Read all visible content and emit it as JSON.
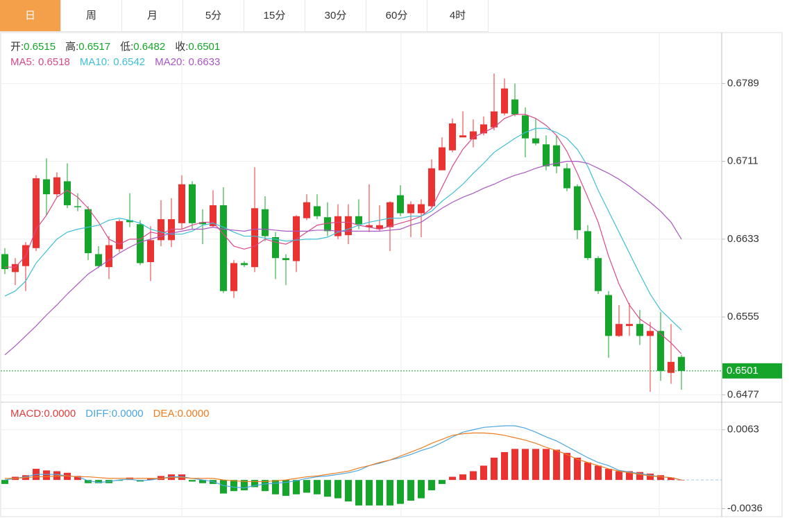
{
  "tabs": [
    "日",
    "周",
    "月",
    "5分",
    "15分",
    "30分",
    "60分",
    "4时"
  ],
  "active_tab": 0,
  "chart_data": [
    {
      "type": "candlestick",
      "ohlc_names": [
        "开:",
        "高:",
        "低:",
        "收:"
      ],
      "up_color": "#ea3331",
      "down_color": "#14a52a",
      "ylim": [
        0.6471,
        0.684
      ],
      "yticks": [
        0.6477,
        0.6555,
        0.6633,
        0.6711,
        0.6789
      ],
      "grid": true,
      "candles": {
        "open": [
          0.6618,
          0.66,
          0.6606,
          0.6624,
          0.6693,
          0.6678,
          0.6691,
          0.6666,
          0.6663,
          0.6618,
          0.6605,
          0.6623,
          0.6652,
          0.6648,
          0.661,
          0.6632,
          0.6632,
          0.6649,
          0.6688,
          0.665,
          0.6646,
          0.6667,
          0.6581,
          0.6609,
          0.6605,
          0.6663,
          0.6635,
          0.6614,
          0.6611,
          0.6654,
          0.6666,
          0.6655,
          0.6636,
          0.6637,
          0.6656,
          0.6645,
          0.6643,
          0.6645,
          0.6677,
          0.6659,
          0.6659,
          0.6666,
          0.6702,
          0.6722,
          0.6735,
          0.6733,
          0.6739,
          0.6745,
          0.6759,
          0.6773,
          0.6757,
          0.6734,
          0.6728,
          0.6727,
          0.6704,
          0.6686,
          0.6641,
          0.6614,
          0.6577,
          0.6536,
          0.6546,
          0.6548,
          0.6536,
          0.6541,
          0.6499,
          0.6515
        ],
        "high": [
          0.6624,
          0.6614,
          0.663,
          0.6697,
          0.6714,
          0.67,
          0.6709,
          0.6679,
          0.6666,
          0.6626,
          0.6636,
          0.6653,
          0.6679,
          0.6652,
          0.6646,
          0.6672,
          0.6674,
          0.6697,
          0.6691,
          0.6663,
          0.6682,
          0.6685,
          0.6612,
          0.6611,
          0.6705,
          0.6676,
          0.664,
          0.6618,
          0.6657,
          0.6678,
          0.6678,
          0.667,
          0.6668,
          0.6668,
          0.6673,
          0.6688,
          0.6667,
          0.6671,
          0.6687,
          0.6671,
          0.6673,
          0.6713,
          0.6735,
          0.6754,
          0.6761,
          0.6753,
          0.6756,
          0.6799,
          0.6794,
          0.6789,
          0.6765,
          0.6754,
          0.6737,
          0.6737,
          0.6709,
          0.6688,
          0.6647,
          0.6616,
          0.6581,
          0.6567,
          0.6569,
          0.6562,
          0.655,
          0.656,
          0.6548,
          0.6517
        ],
        "low": [
          0.6598,
          0.6587,
          0.6581,
          0.6621,
          0.6657,
          0.6675,
          0.6664,
          0.6661,
          0.6612,
          0.6604,
          0.6593,
          0.662,
          0.6645,
          0.6607,
          0.6591,
          0.6626,
          0.6625,
          0.6643,
          0.6643,
          0.6628,
          0.6645,
          0.6579,
          0.6574,
          0.6605,
          0.66,
          0.6631,
          0.6593,
          0.6587,
          0.66,
          0.6652,
          0.6653,
          0.6636,
          0.6633,
          0.6628,
          0.6643,
          0.664,
          0.6641,
          0.6621,
          0.6656,
          0.6635,
          0.6635,
          0.6664,
          0.6702,
          0.672,
          0.6735,
          0.6725,
          0.6737,
          0.6742,
          0.6757,
          0.6756,
          0.6715,
          0.6727,
          0.6702,
          0.6699,
          0.6681,
          0.6633,
          0.6612,
          0.6578,
          0.6514,
          0.6535,
          0.6536,
          0.6527,
          0.648,
          0.6491,
          0.6488,
          0.6482
        ],
        "close": [
          0.6603,
          0.6608,
          0.6627,
          0.6694,
          0.6678,
          0.6695,
          0.6667,
          0.6665,
          0.6619,
          0.6606,
          0.6627,
          0.6651,
          0.665,
          0.6609,
          0.6632,
          0.6653,
          0.6653,
          0.6688,
          0.6649,
          0.6648,
          0.6667,
          0.6581,
          0.6609,
          0.6607,
          0.6664,
          0.6636,
          0.6614,
          0.6612,
          0.6656,
          0.667,
          0.6656,
          0.6641,
          0.6656,
          0.6656,
          0.6648,
          0.6647,
          0.6647,
          0.667,
          0.6659,
          0.6668,
          0.6668,
          0.6704,
          0.6725,
          0.6749,
          0.6737,
          0.6741,
          0.6748,
          0.6761,
          0.6784,
          0.6758,
          0.6734,
          0.6729,
          0.6706,
          0.6706,
          0.6684,
          0.6642,
          0.6614,
          0.6581,
          0.6536,
          0.6548,
          0.6548,
          0.6536,
          0.6541,
          0.6501,
          0.651,
          0.6501
        ]
      },
      "series": [
        {
          "name": "MA5:",
          "color": "#d9488a",
          "values": [
            0.6605,
            0.6605,
            0.6616,
            0.6643,
            0.6657,
            0.6675,
            0.6682,
            0.6675,
            0.6664,
            0.665,
            0.6633,
            0.6628,
            0.6633,
            0.6633,
            0.664,
            0.6638,
            0.6643,
            0.6643,
            0.6647,
            0.665,
            0.665,
            0.6638,
            0.6626,
            0.6623,
            0.6626,
            0.6633,
            0.663,
            0.6628,
            0.6633,
            0.664,
            0.6647,
            0.6649,
            0.665,
            0.665,
            0.6647,
            0.6645,
            0.6643,
            0.6646,
            0.6649,
            0.6652,
            0.6656,
            0.6664,
            0.6685,
            0.6706,
            0.6723,
            0.6735,
            0.674,
            0.6745,
            0.6754,
            0.6758,
            0.6758,
            0.6754,
            0.6747,
            0.6737,
            0.6721,
            0.6699,
            0.6675,
            0.665,
            0.6616,
            0.6588,
            0.6567,
            0.6553,
            0.6546,
            0.6538,
            0.6529,
            0.6518
          ]
        },
        {
          "name": "MA10:",
          "color": "#3dbfd4",
          "values": [
            0.6576,
            0.6581,
            0.6591,
            0.6609,
            0.6621,
            0.6633,
            0.664,
            0.6643,
            0.6645,
            0.6647,
            0.6652,
            0.6654,
            0.6652,
            0.6649,
            0.6643,
            0.664,
            0.6638,
            0.6638,
            0.6641,
            0.6647,
            0.6649,
            0.6645,
            0.664,
            0.6636,
            0.6636,
            0.6634,
            0.6633,
            0.6631,
            0.6632,
            0.6633,
            0.6633,
            0.6635,
            0.664,
            0.6643,
            0.6647,
            0.665,
            0.6652,
            0.6654,
            0.6654,
            0.6656,
            0.6656,
            0.6661,
            0.6671,
            0.6679,
            0.6688,
            0.6699,
            0.6709,
            0.672,
            0.6727,
            0.6734,
            0.674,
            0.6744,
            0.6744,
            0.674,
            0.6734,
            0.6723,
            0.6706,
            0.6682,
            0.6661,
            0.664,
            0.6619,
            0.6598,
            0.6578,
            0.6562,
            0.6552,
            0.6542
          ]
        },
        {
          "name": "MA20:",
          "color": "#a957c0",
          "values": [
            0.6517,
            0.6526,
            0.6536,
            0.6546,
            0.6557,
            0.6567,
            0.6578,
            0.6588,
            0.6598,
            0.6605,
            0.6612,
            0.6619,
            0.6625,
            0.663,
            0.6633,
            0.6636,
            0.6639,
            0.6641,
            0.6643,
            0.6643,
            0.6645,
            0.6643,
            0.6642,
            0.6641,
            0.6643,
            0.6643,
            0.6642,
            0.6641,
            0.6641,
            0.6641,
            0.6642,
            0.6642,
            0.6641,
            0.6641,
            0.6641,
            0.6641,
            0.6641,
            0.6642,
            0.6643,
            0.6647,
            0.665,
            0.6657,
            0.6664,
            0.667,
            0.6675,
            0.6679,
            0.6684,
            0.6688,
            0.6693,
            0.6697,
            0.67,
            0.6704,
            0.6707,
            0.6709,
            0.6711,
            0.6711,
            0.6709,
            0.6704,
            0.6699,
            0.6693,
            0.6686,
            0.6678,
            0.667,
            0.6661,
            0.665,
            0.6633
          ]
        }
      ]
    },
    {
      "type": "macd",
      "ylim": [
        -0.0046,
        0.0095
      ],
      "yticks": [
        -0.0036,
        0.0063
      ],
      "zero": 0,
      "up_color": "#ea3331",
      "down_color": "#14a52a",
      "series": [
        {
          "name": "MACD:",
          "color": "#e33b3b",
          "kind": "bar",
          "value_label": "0.0000",
          "values": [
            -0.0005,
            0.0004,
            0.0006,
            0.0014,
            0.0012,
            0.0011,
            0.0009,
            0.0005,
            -0.0004,
            -0.0004,
            -0.0004,
            -0.0001,
            0.0003,
            -0.0002,
            0.0002,
            0.0005,
            0.0007,
            0.0007,
            -0.0002,
            -0.0004,
            -0.0005,
            -0.0017,
            -0.0014,
            -0.0013,
            -0.0009,
            -0.0014,
            -0.0018,
            -0.002,
            -0.0018,
            -0.0016,
            -0.0018,
            -0.0021,
            -0.0023,
            -0.0027,
            -0.0032,
            -0.0032,
            -0.0032,
            -0.0032,
            -0.003,
            -0.0026,
            -0.0023,
            -0.0013,
            -0.0005,
            0.0004,
            0.0007,
            0.0011,
            0.0018,
            0.0028,
            0.0035,
            0.0039,
            0.0039,
            0.0039,
            0.0039,
            0.0038,
            0.0034,
            0.0028,
            0.0022,
            0.0018,
            0.0014,
            0.0011,
            0.0011,
            0.001,
            0.0008,
            0.0006,
            0.0003,
            0
          ]
        },
        {
          "name": "DIFF:",
          "color": "#4aa6e0",
          "kind": "line",
          "value_label": "0.0000",
          "values": [
            0,
            0.0002,
            0.0004,
            0.0007,
            0.0007,
            0.0007,
            0.0005,
            0.0004,
            -0.0001,
            -0.0003,
            -0.0002,
            0,
            0.0001,
            -0.0001,
            0,
            0.0002,
            0.0004,
            0.0004,
            0.0002,
            0,
            -0.0002,
            -0.0007,
            -0.0009,
            -0.001,
            -0.0007,
            -0.0005,
            -0.0004,
            -0.0003,
            -0.0001,
            0.0002,
            0.0004,
            0.0005,
            0.0007,
            0.0009,
            0.0012,
            0.0018,
            0.0021,
            0.0025,
            0.0028,
            0.0032,
            0.0037,
            0.0041,
            0.0047,
            0.0054,
            0.006,
            0.0063,
            0.0066,
            0.0067,
            0.0068,
            0.0068,
            0.0065,
            0.006,
            0.0054,
            0.0049,
            0.0042,
            0.0035,
            0.0028,
            0.0022,
            0.0018,
            0.0012,
            0.001,
            0.0008,
            0.0006,
            0.0004,
            0.0003,
            0
          ]
        },
        {
          "name": "DEA:",
          "color": "#ef7d1f",
          "kind": "line",
          "value_label": "0.0000",
          "values": [
            0.0002,
            0.0002,
            0.0003,
            0.0004,
            0.0004,
            0.0005,
            0.0005,
            0.0004,
            0.0004,
            0.0003,
            0.0002,
            0.0002,
            0.0002,
            0.0002,
            0.0002,
            0.0002,
            0.0003,
            0.0003,
            0.0002,
            0.0002,
            0.0002,
            0,
            -0.0001,
            -0.0002,
            -0.0002,
            -0.0002,
            -0.0001,
            0,
            0.0002,
            0.0004,
            0.0005,
            0.0007,
            0.0009,
            0.0011,
            0.0015,
            0.0018,
            0.0022,
            0.0025,
            0.003,
            0.0035,
            0.004,
            0.0046,
            0.0051,
            0.0056,
            0.0058,
            0.0059,
            0.0059,
            0.0058,
            0.0056,
            0.0053,
            0.005,
            0.0046,
            0.0041,
            0.0037,
            0.0032,
            0.0026,
            0.0022,
            0.0018,
            0.0014,
            0.0011,
            0.0009,
            0.0007,
            0.0005,
            0.0004,
            0.0003,
            0
          ]
        }
      ]
    }
  ]
}
